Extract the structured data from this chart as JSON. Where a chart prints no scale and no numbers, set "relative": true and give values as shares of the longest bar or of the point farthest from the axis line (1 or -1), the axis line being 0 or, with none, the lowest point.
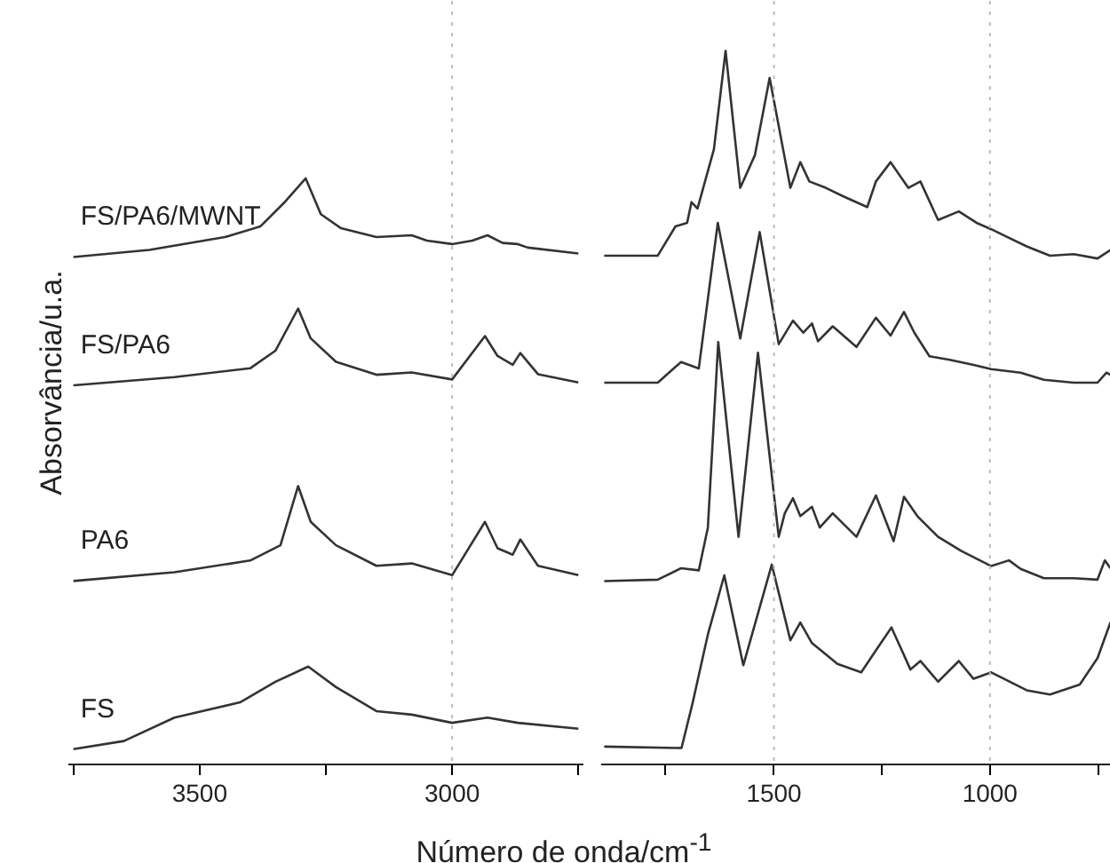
{
  "chart_data": [
    {
      "type": "line",
      "xlabel": "Número de onda/cm$^{-1}$",
      "ylabel": "Absorvância/u.a.",
      "relative": true,
      "xlim": [
        3760,
        2740
      ],
      "xticks": [
        {
          "value": 3750,
          "label": null
        },
        3500,
        {
          "value": 3250,
          "label": null
        },
        3000,
        {
          "value": 2750,
          "label": null
        }
      ],
      "ref_lines": [
        {
          "axis": "x",
          "value": 3000,
          "color": "#bbbbbb",
          "line_style": "dotted"
        }
      ],
      "series": [
        {
          "name": "FS/PA6/MWNT",
          "color": "#333333",
          "x": [
            3750,
            3600,
            3450,
            3380,
            3330,
            3290,
            3260,
            3220,
            3150,
            3080,
            3050,
            3000,
            2960,
            2930,
            2900,
            2870,
            2850,
            2750
          ],
          "values": [
            0.866,
            0.878,
            0.9,
            0.918,
            0.961,
            1,
            0.939,
            0.915,
            0.9,
            0.903,
            0.894,
            0.888,
            0.894,
            0.903,
            0.89,
            0.888,
            0.882,
            0.872
          ]
        },
        {
          "name": "FS/PA6",
          "color": "#333333",
          "x": [
            3750,
            3550,
            3400,
            3350,
            3305,
            3280,
            3230,
            3150,
            3080,
            3000,
            2935,
            2910,
            2880,
            2865,
            2830,
            2750
          ],
          "values": [
            0.647,
            0.661,
            0.676,
            0.706,
            0.778,
            0.727,
            0.687,
            0.665,
            0.669,
            0.657,
            0.731,
            0.697,
            0.682,
            0.702,
            0.666,
            0.652
          ]
        },
        {
          "name": "PA6",
          "color": "#333333",
          "x": [
            3750,
            3550,
            3400,
            3340,
            3305,
            3280,
            3230,
            3150,
            3080,
            3000,
            2935,
            2910,
            2880,
            2865,
            2830,
            2750
          ],
          "values": [
            0.313,
            0.328,
            0.348,
            0.374,
            0.475,
            0.414,
            0.374,
            0.339,
            0.343,
            0.323,
            0.414,
            0.369,
            0.358,
            0.384,
            0.339,
            0.323
          ]
        },
        {
          "name": "FS",
          "color": "#333333",
          "x": [
            3750,
            3650,
            3550,
            3420,
            3350,
            3285,
            3230,
            3150,
            3080,
            3000,
            2930,
            2870,
            2750
          ],
          "values": [
            0.026,
            0.04,
            0.08,
            0.106,
            0.141,
            0.167,
            0.132,
            0.091,
            0.085,
            0.071,
            0.08,
            0.071,
            0.061
          ]
        }
      ]
    },
    {
      "type": "line",
      "relative": true,
      "xlim": [
        1900,
        720
      ],
      "xticks": [
        {
          "value": 1750,
          "label": null
        },
        1500,
        {
          "value": 1250,
          "label": null
        },
        1000,
        {
          "value": 750,
          "label": null
        }
      ],
      "ref_lines": [
        {
          "axis": "x",
          "value": 1500,
          "color": "#bbbbbb",
          "line_style": "dotted"
        },
        {
          "axis": "x",
          "value": 1000,
          "color": "#bbbbbb",
          "line_style": "dotted"
        }
      ],
      "series": [
        {
          "color": "#333333",
          "x": [
            1893,
            1769,
            1728,
            1701,
            1691,
            1677,
            1639,
            1612,
            1578,
            1544,
            1510,
            1462,
            1439,
            1418,
            1380,
            1339,
            1284,
            1264,
            1230,
            1189,
            1161,
            1120,
            1072,
            1031,
            997,
            956,
            915,
            861,
            806,
            751,
            721
          ],
          "values": [
            0.713,
            0.713,
            0.754,
            0.759,
            0.788,
            0.779,
            0.862,
            1,
            0.808,
            0.854,
            0.962,
            0.808,
            0.844,
            0.817,
            0.808,
            0.796,
            0.781,
            0.817,
            0.844,
            0.808,
            0.817,
            0.763,
            0.775,
            0.759,
            0.75,
            0.738,
            0.726,
            0.713,
            0.715,
            0.709,
            0.721
          ]
        },
        {
          "color": "#333333",
          "x": [
            1893,
            1769,
            1715,
            1674,
            1630,
            1578,
            1533,
            1489,
            1456,
            1432,
            1412,
            1398,
            1364,
            1309,
            1264,
            1230,
            1199,
            1175,
            1140,
            1093,
            1038,
            997,
            929,
            875,
            806,
            751,
            730,
            721
          ],
          "values": [
            0.535,
            0.535,
            0.564,
            0.555,
            0.759,
            0.597,
            0.746,
            0.589,
            0.622,
            0.605,
            0.618,
            0.593,
            0.614,
            0.585,
            0.626,
            0.601,
            0.634,
            0.605,
            0.572,
            0.567,
            0.56,
            0.554,
            0.549,
            0.539,
            0.535,
            0.535,
            0.549,
            0.546
          ]
        },
        {
          "color": "#333333",
          "x": [
            1893,
            1769,
            1715,
            1674,
            1653,
            1629,
            1582,
            1537,
            1489,
            1475,
            1456,
            1439,
            1412,
            1394,
            1364,
            1309,
            1264,
            1223,
            1199,
            1168,
            1120,
            1066,
            997,
            956,
            929,
            875,
            806,
            751,
            734,
            721
          ],
          "values": [
            0.257,
            0.259,
            0.275,
            0.272,
            0.332,
            0.592,
            0.319,
            0.577,
            0.319,
            0.352,
            0.373,
            0.348,
            0.361,
            0.332,
            0.352,
            0.319,
            0.377,
            0.313,
            0.375,
            0.348,
            0.319,
            0.299,
            0.278,
            0.286,
            0.274,
            0.261,
            0.261,
            0.259,
            0.286,
            0.275
          ]
        },
        {
          "color": "#333333",
          "x": [
            1893,
            1714,
            1688,
            1653,
            1615,
            1571,
            1505,
            1462,
            1439,
            1412,
            1353,
            1298,
            1257,
            1228,
            1184,
            1161,
            1120,
            1072,
            1038,
            997,
            915,
            861,
            792,
            751,
            721
          ],
          "values": [
            0.025,
            0.023,
            0.087,
            0.182,
            0.265,
            0.139,
            0.28,
            0.174,
            0.199,
            0.17,
            0.141,
            0.129,
            0.166,
            0.192,
            0.133,
            0.145,
            0.116,
            0.145,
            0.12,
            0.129,
            0.104,
            0.098,
            0.112,
            0.149,
            0.199
          ]
        }
      ]
    }
  ]
}
